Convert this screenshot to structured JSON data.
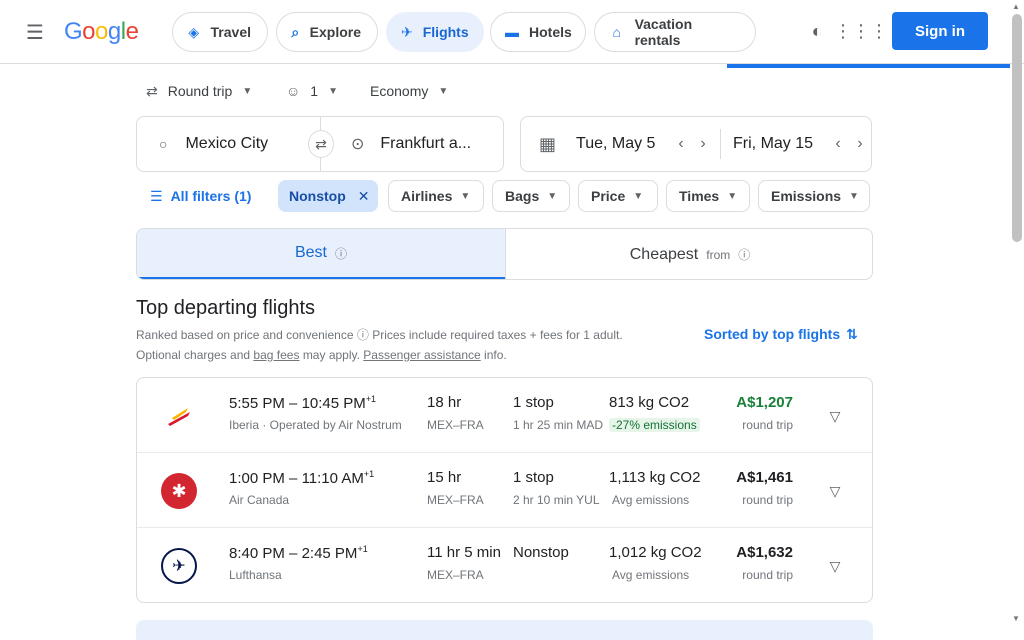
{
  "header": {
    "logo": [
      "G",
      "o",
      "o",
      "g",
      "l",
      "e"
    ],
    "tabs": [
      {
        "label": "Travel",
        "icon": "travel-tag-icon"
      },
      {
        "label": "Explore",
        "icon": "explore-icon"
      },
      {
        "label": "Flights",
        "icon": "airplane-icon"
      },
      {
        "label": "Hotels",
        "icon": "bed-icon"
      },
      {
        "label": "Vacation rentals",
        "icon": "house-icon"
      }
    ],
    "signin_label": "Sign in"
  },
  "search": {
    "trip_type": "Round trip",
    "passengers": "1",
    "cabin_class": "Economy",
    "origin": "Mexico City",
    "destination": "Frankfurt a...",
    "depart_date": "Tue, May 5",
    "return_date": "Fri, May 15"
  },
  "filters": {
    "all_filters": "All filters (1)",
    "nonstop": "Nonstop",
    "airlines": "Airlines",
    "bags": "Bags",
    "price": "Price",
    "times": "Times",
    "emissions": "Emissions"
  },
  "sort_tabs": {
    "best": "Best",
    "cheapest": "Cheapest",
    "cheapest_from": "from"
  },
  "section": {
    "title": "Top departing flights",
    "line1_a": "Ranked based on price and convenience",
    "line1_b": "Prices include required taxes + fees for 1 adult.",
    "line2_a": "Optional charges and",
    "bag_fees": "bag fees",
    "line2_b": "may apply.",
    "assistance": "Passenger assistance",
    "line2_c": "info.",
    "sorted_by": "Sorted by top flights"
  },
  "colors": {
    "accent": "#1a73e8",
    "price_green": "#188038"
  },
  "flights": [
    {
      "logo_icon": "iberia-logo-icon",
      "depart": "5:55 PM",
      "arrive": "10:45 PM",
      "plus_day": "+1",
      "carrier": "Iberia · Operated by Air Nostrum",
      "duration": "18 hr",
      "route": "MEX–FRA",
      "stops": "1 stop",
      "layover": "1 hr 25 min MAD",
      "co2": "813 kg CO2",
      "co2_sub": "-27% emissions",
      "price": "A$1,207",
      "price_sub": "round trip",
      "price_green": true
    },
    {
      "logo_icon": "air-canada-logo-icon",
      "depart": "1:00 PM",
      "arrive": "11:10 AM",
      "plus_day": "+1",
      "carrier": "Air Canada",
      "duration": "15 hr",
      "route": "MEX–FRA",
      "stops": "1 stop",
      "layover": "2 hr 10 min YUL",
      "co2": "1,113 kg CO2",
      "co2_sub": "Avg emissions",
      "price": "A$1,461",
      "price_sub": "round trip",
      "price_green": false
    },
    {
      "logo_icon": "lufthansa-logo-icon",
      "depart": "8:40 PM",
      "arrive": "2:45 PM",
      "plus_day": "+1",
      "carrier": "Lufthansa",
      "duration": "11 hr 5 min",
      "route": "MEX–FRA",
      "stops": "Nonstop",
      "layover": "",
      "co2": "1,012 kg CO2",
      "co2_sub": "Avg emissions",
      "price": "A$1,632",
      "price_sub": "round trip",
      "price_green": false
    }
  ]
}
